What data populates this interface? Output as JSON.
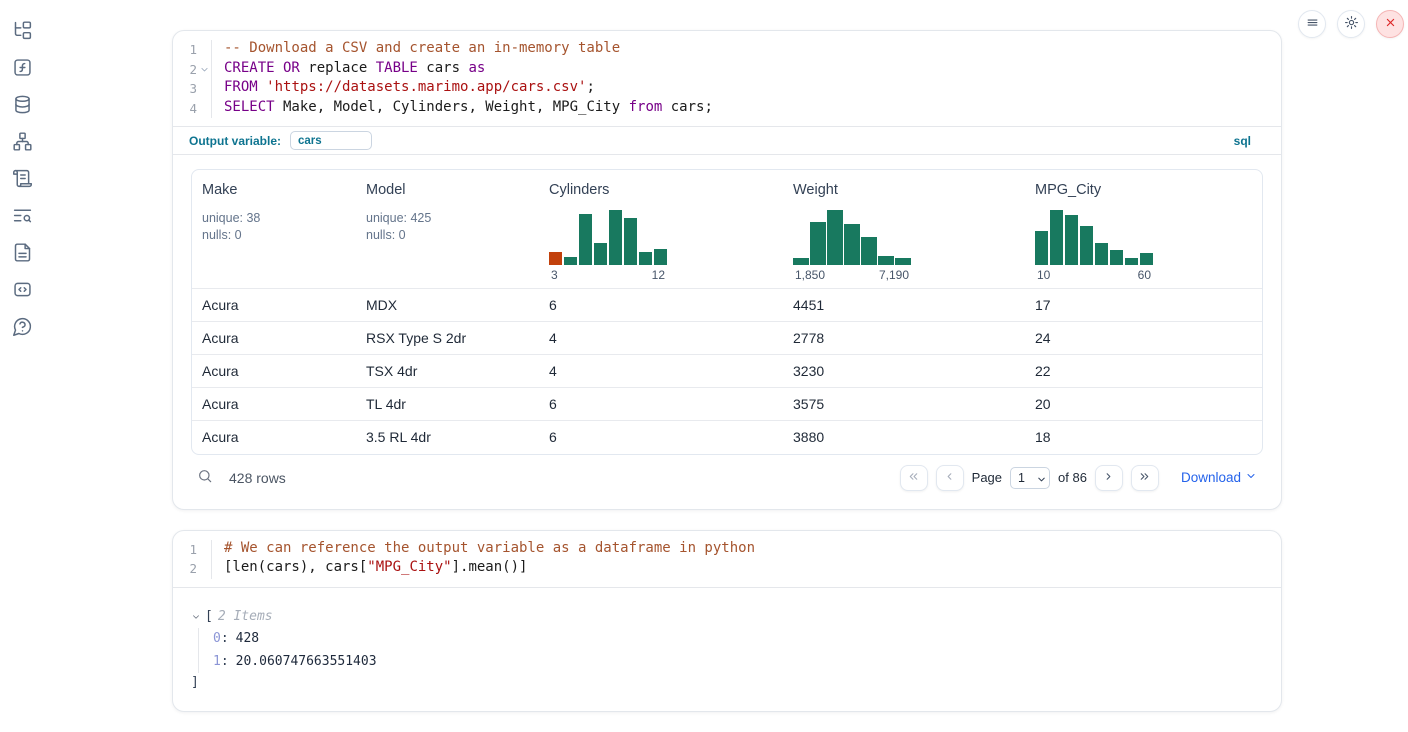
{
  "theme": {
    "teal": "#0e7490",
    "link": "#2563eb",
    "hist_green": "#18795f",
    "hist_orange": "#c2410c",
    "syntax_comment": "#a5542e",
    "syntax_keyword": "#770088",
    "syntax_string": "#aa1111",
    "syntax_plain": "#1b1b1b",
    "tree_key": "#8b95d6",
    "tree_value": "#1e293b"
  },
  "sidebar": {
    "items": [
      {
        "icon": "file-explorer-tree-icon"
      },
      {
        "icon": "variables-function-icon"
      },
      {
        "icon": "data-sources-database-icon"
      },
      {
        "icon": "dependency-graph-icon"
      },
      {
        "icon": "scratchpad-scroll-icon"
      },
      {
        "icon": "logs-list-search-icon"
      },
      {
        "icon": "documentation-file-icon"
      },
      {
        "icon": "snippets-code-icon"
      },
      {
        "icon": "help-question-bubble-icon"
      }
    ]
  },
  "window_controls": {
    "menu_icon": "hamburger-menu-icon",
    "settings_icon": "gear-icon",
    "close_icon": "shutdown-x-icon"
  },
  "sql_cell": {
    "language_label": "sql",
    "output_variable": {
      "label": "Output variable:",
      "value": "cars"
    },
    "code_lines": [
      {
        "num": "1",
        "fold": false,
        "tokens": [
          {
            "c": "com",
            "t": "-- Download a CSV and create an in-memory table"
          }
        ]
      },
      {
        "num": "2",
        "fold": true,
        "tokens": [
          {
            "c": "kw",
            "t": "CREATE OR"
          },
          {
            "c": "pl",
            "t": " replace "
          },
          {
            "c": "kw",
            "t": "TABLE"
          },
          {
            "c": "pl",
            "t": " cars "
          },
          {
            "c": "kw",
            "t": "as"
          }
        ]
      },
      {
        "num": "3",
        "fold": false,
        "tokens": [
          {
            "c": "kw",
            "t": "FROM"
          },
          {
            "c": "pl",
            "t": " "
          },
          {
            "c": "str",
            "t": "'https://datasets.marimo.app/cars.csv'"
          },
          {
            "c": "pl",
            "t": ";"
          }
        ]
      },
      {
        "num": "4",
        "fold": false,
        "tokens": [
          {
            "c": "kw",
            "t": "SELECT"
          },
          {
            "c": "pl",
            "t": " Make, Model, Cylinders, Weight, MPG_City "
          },
          {
            "c": "kw",
            "t": "from"
          },
          {
            "c": "pl",
            "t": " cars;"
          }
        ]
      }
    ]
  },
  "table": {
    "columns": [
      {
        "label": "Make",
        "stats": [
          "unique: 38",
          "nulls: 0"
        ]
      },
      {
        "label": "Model",
        "stats": [
          "unique: 425",
          "nulls: 0"
        ]
      },
      {
        "label": "Cylinders",
        "histogram": {
          "min_label": "3",
          "max_label": "12",
          "bars": [
            {
              "h": 0.23,
              "color": "orange"
            },
            {
              "h": 0.15
            },
            {
              "h": 0.92
            },
            {
              "h": 0.4
            },
            {
              "h": 1.0
            },
            {
              "h": 0.85
            },
            {
              "h": 0.23
            },
            {
              "h": 0.29
            }
          ]
        }
      },
      {
        "label": "Weight",
        "histogram": {
          "min_label": "1,850",
          "max_label": "7,190",
          "bars": [
            {
              "h": 0.12
            },
            {
              "h": 0.78
            },
            {
              "h": 1.0
            },
            {
              "h": 0.74
            },
            {
              "h": 0.5
            },
            {
              "h": 0.17
            },
            {
              "h": 0.13
            }
          ]
        }
      },
      {
        "label": "MPG_City",
        "histogram": {
          "min_label": "10",
          "max_label": "60",
          "bars": [
            {
              "h": 0.62
            },
            {
              "h": 1.0
            },
            {
              "h": 0.9
            },
            {
              "h": 0.7
            },
            {
              "h": 0.4
            },
            {
              "h": 0.28
            },
            {
              "h": 0.13
            },
            {
              "h": 0.22
            }
          ]
        }
      }
    ],
    "rows": [
      [
        "Acura",
        "MDX",
        "6",
        "4451",
        "17"
      ],
      [
        "Acura",
        "RSX Type S 2dr",
        "4",
        "2778",
        "24"
      ],
      [
        "Acura",
        "TSX 4dr",
        "4",
        "3230",
        "22"
      ],
      [
        "Acura",
        "TL 4dr",
        "6",
        "3575",
        "20"
      ],
      [
        "Acura",
        "3.5 RL 4dr",
        "6",
        "3880",
        "18"
      ]
    ]
  },
  "table_footer": {
    "rows_count": "428 rows",
    "page_label": "Page",
    "page_value": "1",
    "of_label": "of 86",
    "download_label": "Download"
  },
  "python_cell": {
    "code_lines": [
      {
        "num": "1",
        "fold": false,
        "tokens": [
          {
            "c": "com",
            "t": "# We can reference the output variable as a dataframe in python"
          }
        ]
      },
      {
        "num": "2",
        "fold": false,
        "tokens": [
          {
            "c": "pl",
            "t": "[len(cars), cars["
          },
          {
            "c": "str",
            "t": "\"MPG_City\""
          },
          {
            "c": "pl",
            "t": "].mean()]"
          }
        ]
      }
    ]
  },
  "tree_output": {
    "open_bracket": "[",
    "items_label": "2 Items",
    "items": [
      {
        "key": "0",
        "value": "428"
      },
      {
        "key": "1",
        "value": "20.060747663551403"
      }
    ],
    "close_bracket": "]"
  }
}
